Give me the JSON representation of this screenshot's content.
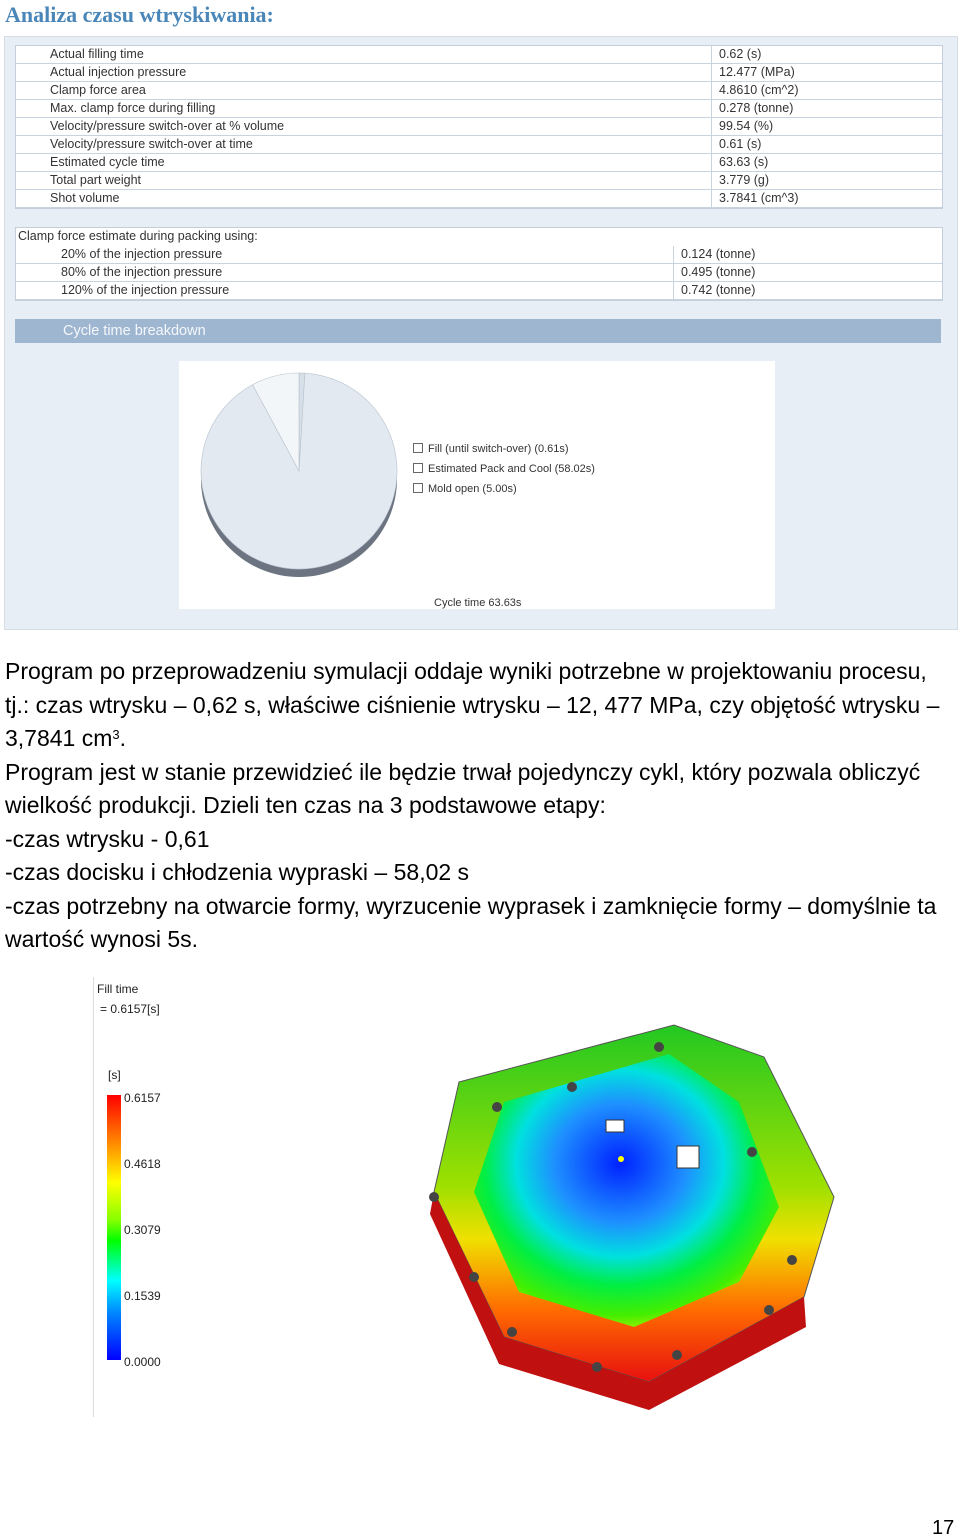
{
  "heading": "Analiza czasu wtryskiwania:",
  "results": [
    {
      "label": "Actual filling time",
      "value": "0.62 (s)"
    },
    {
      "label": "Actual injection pressure",
      "value": "12.477 (MPa)"
    },
    {
      "label": "Clamp force area",
      "value": "4.8610 (cm^2)"
    },
    {
      "label": "Max. clamp force during filling",
      "value": "0.278 (tonne)"
    },
    {
      "label": "Velocity/pressure switch-over at % volume",
      "value": "99.54 (%)"
    },
    {
      "label": "Velocity/pressure switch-over at time",
      "value": "0.61 (s)"
    },
    {
      "label": "Estimated cycle time",
      "value": "63.63 (s)"
    },
    {
      "label": "Total part weight",
      "value": "3.779 (g)"
    },
    {
      "label": "Shot volume",
      "value": "3.7841 (cm^3)"
    }
  ],
  "clamp": {
    "title": "Clamp force estimate during packing using:",
    "rows": [
      {
        "label": "20% of the injection pressure",
        "value": "0.124 (tonne)"
      },
      {
        "label": "80% of the injection pressure",
        "value": "0.495 (tonne)"
      },
      {
        "label": "120% of the injection pressure",
        "value": "0.742 (tonne)"
      }
    ]
  },
  "breakdown": {
    "title": "Cycle time breakdown",
    "cycle_label": "Cycle time 63.63s"
  },
  "chart_data": {
    "type": "pie",
    "categories": [
      "Fill (until switch-over) (0.61s)",
      "Estimated Pack and Cool (58.02s)",
      "Mold open (5.00s)"
    ],
    "values": [
      0.61,
      58.02,
      5.0
    ],
    "colors": [
      "#d7dfe8",
      "#e3e9f0",
      "#f3f6f9"
    ],
    "legend_position": "right"
  },
  "para1": {
    "text": "Program po przeprowadzeniu symulacji oddaje wyniki potrzebne w projektowaniu procesu, tj.: czas wtrysku – 0,62 s, właściwe ciśnienie wtrysku – 12, 477 MPa, czy objętość wtrysku – 3,7841 cm",
    "sup": "3",
    "end": "."
  },
  "para2": "Program jest w stanie przewidzieć ile będzie trwał pojedynczy cykl, który pozwala obliczyć wielkość produkcji. Dzieli ten czas na 3 podstawowe etapy:",
  "list": [
    "-czas wtrysku - 0,61",
    "-czas docisku i chłodzenia wypraski – 58,02 s",
    "-czas potrzebny na otwarcie formy, wyrzucenie wyprasek i zamknięcie formy – domyślnie ta wartość wynosi 5s."
  ],
  "sim": {
    "title": "Fill time",
    "value": "= 0.6157[s]",
    "unit": "[s]",
    "ticks": [
      "0.6157",
      "0.4618",
      "0.3079",
      "0.1539",
      "0.0000"
    ]
  },
  "page_number": "17"
}
